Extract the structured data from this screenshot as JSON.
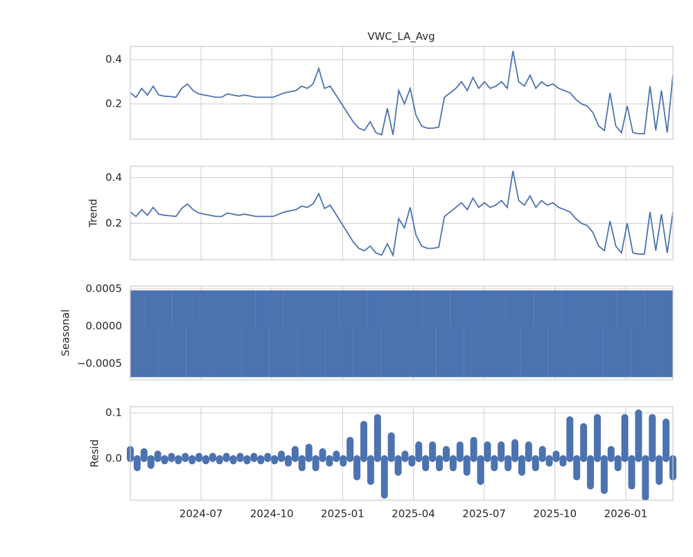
{
  "chart_data": [
    {
      "type": "line",
      "title": "VWC_LA_Avg",
      "color": "#4c72b0",
      "xlim": [
        "2024-04",
        "2026-03"
      ],
      "xticks": [
        "2024-07",
        "2024-10",
        "2025-01",
        "2025-04",
        "2025-07",
        "2025-10",
        "2026-01"
      ],
      "ylim": [
        0.04,
        0.46
      ],
      "yticks": [
        0.2,
        0.4
      ],
      "grid": true,
      "values": [
        0.25,
        0.23,
        0.27,
        0.24,
        0.28,
        0.24,
        0.235,
        0.233,
        0.23,
        0.27,
        0.29,
        0.26,
        0.245,
        0.24,
        0.235,
        0.23,
        0.23,
        0.245,
        0.24,
        0.235,
        0.24,
        0.235,
        0.23,
        0.23,
        0.23,
        0.23,
        0.24,
        0.25,
        0.255,
        0.26,
        0.28,
        0.27,
        0.29,
        0.36,
        0.27,
        0.28,
        0.24,
        0.2,
        0.16,
        0.12,
        0.09,
        0.08,
        0.12,
        0.07,
        0.06,
        0.18,
        0.06,
        0.26,
        0.2,
        0.27,
        0.15,
        0.1,
        0.09,
        0.09,
        0.095,
        0.23,
        0.25,
        0.27,
        0.3,
        0.26,
        0.32,
        0.27,
        0.3,
        0.27,
        0.28,
        0.3,
        0.27,
        0.44,
        0.3,
        0.28,
        0.33,
        0.27,
        0.3,
        0.28,
        0.29,
        0.27,
        0.26,
        0.25,
        0.22,
        0.2,
        0.19,
        0.16,
        0.1,
        0.08,
        0.25,
        0.1,
        0.07,
        0.19,
        0.07,
        0.065,
        0.065,
        0.28,
        0.08,
        0.26,
        0.07,
        0.33
      ]
    },
    {
      "type": "line",
      "ylabel": "Trend",
      "color": "#4c72b0",
      "xlim": [
        "2024-04",
        "2026-03"
      ],
      "xticks": [
        "2024-07",
        "2024-10",
        "2025-01",
        "2025-04",
        "2025-07",
        "2025-10",
        "2026-01"
      ],
      "ylim": [
        0.04,
        0.45
      ],
      "yticks": [
        0.2,
        0.4
      ],
      "grid": true,
      "values": [
        0.25,
        0.23,
        0.26,
        0.235,
        0.27,
        0.24,
        0.235,
        0.233,
        0.23,
        0.265,
        0.285,
        0.26,
        0.245,
        0.24,
        0.235,
        0.23,
        0.23,
        0.245,
        0.24,
        0.235,
        0.24,
        0.235,
        0.23,
        0.23,
        0.23,
        0.23,
        0.24,
        0.25,
        0.255,
        0.26,
        0.275,
        0.27,
        0.285,
        0.33,
        0.265,
        0.28,
        0.24,
        0.2,
        0.16,
        0.12,
        0.09,
        0.08,
        0.1,
        0.07,
        0.06,
        0.11,
        0.06,
        0.22,
        0.18,
        0.27,
        0.15,
        0.1,
        0.09,
        0.09,
        0.095,
        0.23,
        0.25,
        0.27,
        0.29,
        0.26,
        0.31,
        0.27,
        0.29,
        0.27,
        0.28,
        0.3,
        0.27,
        0.43,
        0.3,
        0.28,
        0.32,
        0.27,
        0.3,
        0.28,
        0.29,
        0.27,
        0.26,
        0.25,
        0.22,
        0.2,
        0.19,
        0.16,
        0.1,
        0.08,
        0.21,
        0.1,
        0.07,
        0.2,
        0.07,
        0.065,
        0.065,
        0.25,
        0.08,
        0.24,
        0.07,
        0.25
      ]
    },
    {
      "type": "bar",
      "ylabel": "Seasonal",
      "color": "#4c72b0",
      "xlim": [
        "2024-04",
        "2026-03"
      ],
      "xticks": [
        "2024-07",
        "2024-10",
        "2025-01",
        "2025-04",
        "2025-07",
        "2025-10",
        "2026-01"
      ],
      "ylim": [
        -0.000713,
        0.000537
      ],
      "yticks": [
        {
          "value": 0.0005,
          "label": "0.0005"
        },
        {
          "value": 0,
          "label": "0.0000"
        },
        {
          "value": -0.0005,
          "label": "−0.0005"
        }
      ],
      "grid": true,
      "values": [
        0.00048,
        -0.00068,
        0.00048,
        -0.00068,
        0.00048,
        -0.00068,
        0.00048,
        -0.00068,
        0.00048,
        -0.00068,
        0.00048,
        -0.00068,
        0.00048,
        -0.00068,
        0.00048,
        -0.00068,
        0.00048,
        -0.00068,
        0.00048,
        -0.00068,
        0.00048,
        -0.00068,
        0.00048,
        -0.00068,
        0.00048,
        -0.00068,
        0.00048,
        -0.00068,
        0.00048,
        -0.00068,
        0.00048,
        -0.00068,
        0.00048,
        -0.00068,
        0.00048,
        -0.00068,
        0.00048,
        -0.00068,
        0.00048,
        -0.00068
      ]
    },
    {
      "type": "scatter",
      "ylabel": "Resid",
      "color": "#4c72b0",
      "xlim": [
        "2024-04",
        "2026-03"
      ],
      "xticks": [
        "2024-07",
        "2024-10",
        "2025-01",
        "2025-04",
        "2025-07",
        "2025-10",
        "2026-01"
      ],
      "ylim": [
        -0.091,
        0.1136
      ],
      "yticks": [
        0.1,
        {
          "value": 0,
          "label": "0.0"
        }
      ],
      "grid": true,
      "values": [
        0.02,
        -0.02,
        0.015,
        -0.015,
        0.01,
        -0.005,
        0.005,
        -0.005,
        0.005,
        -0.005,
        0.005,
        -0.005,
        0.005,
        -0.005,
        0.005,
        -0.005,
        0.005,
        -0.005,
        0.005,
        -0.005,
        0.005,
        -0.005,
        0.01,
        -0.01,
        0.02,
        -0.02,
        0.025,
        -0.02,
        0.015,
        -0.01,
        0.01,
        -0.01,
        0.04,
        -0.04,
        0.075,
        -0.05,
        0.09,
        -0.08,
        0.05,
        -0.03,
        0.01,
        -0.01,
        0.03,
        -0.02,
        0.03,
        -0.02,
        0.02,
        -0.02,
        0.03,
        -0.03,
        0.04,
        -0.05,
        0.03,
        -0.02,
        0.03,
        -0.02,
        0.035,
        -0.03,
        0.03,
        -0.02,
        0.02,
        -0.01,
        0.01,
        -0.01,
        0.085,
        -0.04,
        0.07,
        -0.06,
        0.09,
        -0.07,
        0.02,
        -0.02,
        0.09,
        -0.06,
        0.1,
        -0.085,
        0.09,
        -0.05,
        0.08,
        -0.04
      ]
    }
  ]
}
